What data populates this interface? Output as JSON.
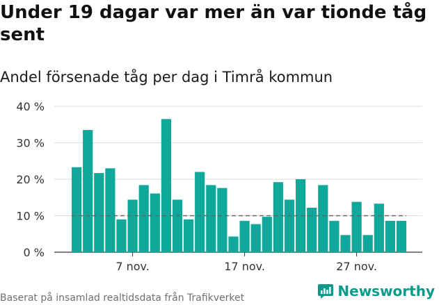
{
  "title": "Under 19 dagar var mer än var tionde tåg sent",
  "subtitle": "Andel försenade tåg per dag i Timrå kommun",
  "footer": "Baserat på insamlad realtidsdata från Trafikverket",
  "brand": {
    "name": "Newsworthy",
    "icon": "newsworthy-logo-icon",
    "color": "#0a9b8a"
  },
  "chart_data": {
    "type": "bar",
    "x_tick_labels": [
      "7 nov.",
      "17 nov.",
      "27 nov."
    ],
    "x_tick_positions": [
      5,
      15,
      25
    ],
    "y_ticks": [
      0,
      10,
      20,
      30,
      40
    ],
    "y_tick_labels": [
      "0 %",
      "10 %",
      "20 %",
      "30 %",
      "40 %"
    ],
    "ylim": [
      0,
      40
    ],
    "values": [
      23.3,
      33.5,
      21.7,
      23,
      9,
      14.4,
      18.4,
      16.1,
      36.5,
      14.4,
      9,
      22,
      18.4,
      17.6,
      4.3,
      8.6,
      7.7,
      9.7,
      19.2,
      14.4,
      20,
      12.2,
      18.4,
      8.6,
      4.7,
      13.8,
      4.7,
      13.3,
      8.6,
      8.6
    ],
    "reference_line": 10,
    "bar_color": "#0fa89a",
    "reference_color": "#666666",
    "grid": true
  }
}
